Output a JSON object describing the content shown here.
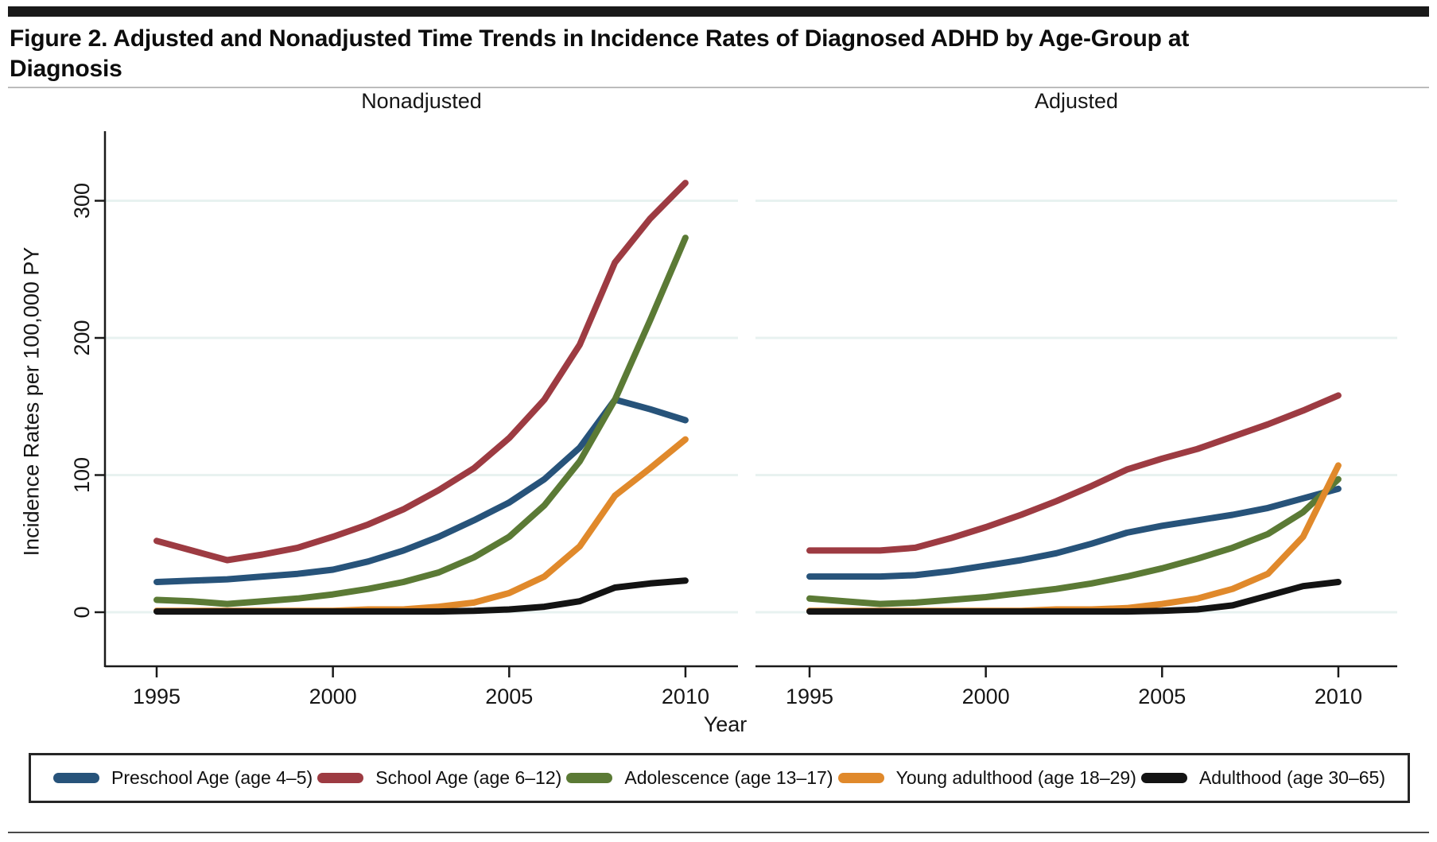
{
  "page": {
    "title": "Figure 2. Adjusted and Nonadjusted Time Trends in Incidence Rates of Diagnosed ADHD by Age-Group at Diagnosis"
  },
  "axes": {
    "y_title": "Incidence Rates per 100,000 PY",
    "x_title": "Year",
    "y_ticks": [
      0,
      100,
      200,
      300
    ],
    "x_ticks": [
      1995,
      2000,
      2005,
      2010
    ]
  },
  "colors": {
    "preschool": "#27537A",
    "school": "#9D3B42",
    "adolescence": "#5B7A35",
    "young": "#E0892B",
    "adulthood": "#131313",
    "grid": "#E8F2F0",
    "axis": "#1A1A1A"
  },
  "legend": {
    "items": [
      {
        "key": "preschool",
        "label": "Preschool Age (age 4–5)"
      },
      {
        "key": "school",
        "label": "School Age (age 6–12)"
      },
      {
        "key": "adolescence",
        "label": "Adolescence (age 13–17)"
      },
      {
        "key": "young",
        "label": "Young adulthood (age 18–29)"
      },
      {
        "key": "adulthood",
        "label": "Adulthood (age 30–65)"
      }
    ]
  },
  "chart_data": [
    {
      "type": "line",
      "title": "Nonadjusted",
      "xlabel": "Year",
      "ylabel": "Incidence Rates per 100,000 PY",
      "x_range": [
        1995,
        2010
      ],
      "ylim": [
        0,
        350
      ],
      "grid": true,
      "legend_position": "bottom",
      "x": [
        1995,
        1996,
        1997,
        1998,
        1999,
        2000,
        2001,
        2002,
        2003,
        2004,
        2005,
        2006,
        2007,
        2008,
        2009,
        2010
      ],
      "series": [
        {
          "key": "preschool",
          "name": "Preschool Age (age 4–5)",
          "values": [
            22,
            23,
            24,
            26,
            28,
            31,
            37,
            45,
            55,
            67,
            80,
            97,
            120,
            155,
            148,
            140
          ]
        },
        {
          "key": "school",
          "name": "School Age (age 6–12)",
          "values": [
            52,
            45,
            38,
            42,
            47,
            55,
            64,
            75,
            89,
            105,
            127,
            155,
            195,
            255,
            287,
            313
          ]
        },
        {
          "key": "adolescence",
          "name": "Adolescence (age 13–17)",
          "values": [
            9,
            8,
            6,
            8,
            10,
            13,
            17,
            22,
            29,
            40,
            55,
            78,
            110,
            155,
            213,
            273
          ]
        },
        {
          "key": "young",
          "name": "Young adulthood (age 18–29)",
          "values": [
            1,
            1,
            1,
            1,
            1,
            1,
            2,
            2,
            4,
            7,
            14,
            26,
            48,
            85,
            105,
            126
          ]
        },
        {
          "key": "adulthood",
          "name": "Adulthood (age 30–65)",
          "values": [
            0.5,
            0.5,
            0.5,
            0.5,
            0.5,
            0.5,
            0.5,
            0.5,
            0.5,
            1,
            2,
            4,
            8,
            18,
            21,
            23
          ]
        }
      ]
    },
    {
      "type": "line",
      "title": "Adjusted",
      "xlabel": "Year",
      "ylabel": "Incidence Rates per 100,000 PY",
      "x_range": [
        1995,
        2010
      ],
      "ylim": [
        0,
        350
      ],
      "grid": true,
      "legend_position": "bottom",
      "x": [
        1995,
        1996,
        1997,
        1998,
        1999,
        2000,
        2001,
        2002,
        2003,
        2004,
        2005,
        2006,
        2007,
        2008,
        2009,
        2010
      ],
      "series": [
        {
          "key": "preschool",
          "name": "Preschool Age (age 4–5)",
          "values": [
            26,
            26,
            26,
            27,
            30,
            34,
            38,
            43,
            50,
            58,
            63,
            67,
            71,
            76,
            83,
            90
          ]
        },
        {
          "key": "school",
          "name": "School Age (age 6–12)",
          "values": [
            45,
            45,
            45,
            47,
            54,
            62,
            71,
            81,
            92,
            104,
            112,
            119,
            128,
            137,
            147,
            158
          ]
        },
        {
          "key": "adolescence",
          "name": "Adolescence (age 13–17)",
          "values": [
            10,
            8,
            6,
            7,
            9,
            11,
            14,
            17,
            21,
            26,
            32,
            39,
            47,
            57,
            73,
            97
          ]
        },
        {
          "key": "young",
          "name": "Young adulthood (age 18–29)",
          "values": [
            1,
            1,
            1,
            1,
            1,
            1,
            1,
            2,
            2,
            3,
            6,
            10,
            17,
            28,
            55,
            107
          ]
        },
        {
          "key": "adulthood",
          "name": "Adulthood (age 30–65)",
          "values": [
            0.5,
            0.5,
            0.5,
            0.5,
            0.5,
            0.5,
            0.5,
            0.5,
            0.5,
            0.5,
            1,
            2,
            5,
            12,
            19,
            22
          ]
        }
      ]
    }
  ]
}
